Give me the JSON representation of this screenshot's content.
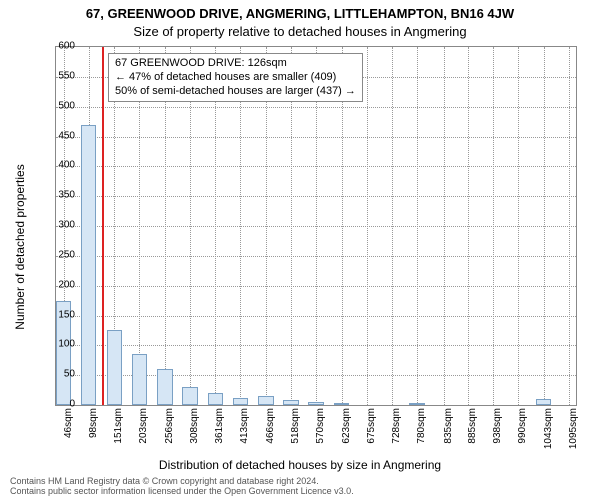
{
  "address": "67, GREENWOOD DRIVE, ANGMERING, LITTLEHAMPTON, BN16 4JW",
  "subtitle": "Size of property relative to detached houses in Angmering",
  "ylabel": "Number of detached properties",
  "xlabel": "Distribution of detached houses by size in Angmering",
  "footer1": "Contains HM Land Registry data © Crown copyright and database right 2024.",
  "footer2": "Contains public sector information licensed under the Open Government Licence v3.0.",
  "chart": {
    "type": "bar",
    "bar_fill": "#d6e6f5",
    "bar_stroke": "#7aa0c4",
    "grid_color": "#999999",
    "marker_color": "#d22",
    "marker_x": 126,
    "x_min": 30,
    "x_max": 1110,
    "y_min": 0,
    "y_max": 600,
    "ytick_step": 50,
    "xticks": [
      46,
      98,
      151,
      203,
      256,
      308,
      361,
      413,
      466,
      518,
      570,
      623,
      675,
      728,
      780,
      835,
      885,
      938,
      990,
      1043,
      1095
    ],
    "xtick_suffix": "sqm",
    "bar_halfwidth_units": 16,
    "bars": [
      {
        "x": 46,
        "y": 175
      },
      {
        "x": 98,
        "y": 470
      },
      {
        "x": 151,
        "y": 125
      },
      {
        "x": 203,
        "y": 85
      },
      {
        "x": 256,
        "y": 60
      },
      {
        "x": 308,
        "y": 30
      },
      {
        "x": 361,
        "y": 20
      },
      {
        "x": 413,
        "y": 12
      },
      {
        "x": 466,
        "y": 15
      },
      {
        "x": 518,
        "y": 8
      },
      {
        "x": 570,
        "y": 5
      },
      {
        "x": 623,
        "y": 4
      },
      {
        "x": 675,
        "y": 0
      },
      {
        "x": 728,
        "y": 0
      },
      {
        "x": 780,
        "y": 2
      },
      {
        "x": 835,
        "y": 0
      },
      {
        "x": 885,
        "y": 0
      },
      {
        "x": 938,
        "y": 0
      },
      {
        "x": 990,
        "y": 0
      },
      {
        "x": 1043,
        "y": 10
      },
      {
        "x": 1095,
        "y": 0
      }
    ]
  },
  "legend": {
    "line1": "67 GREENWOOD DRIVE: 126sqm",
    "line2": "← 47% of detached houses are smaller (409)",
    "line3": "50% of semi-detached houses are larger (437) →"
  }
}
